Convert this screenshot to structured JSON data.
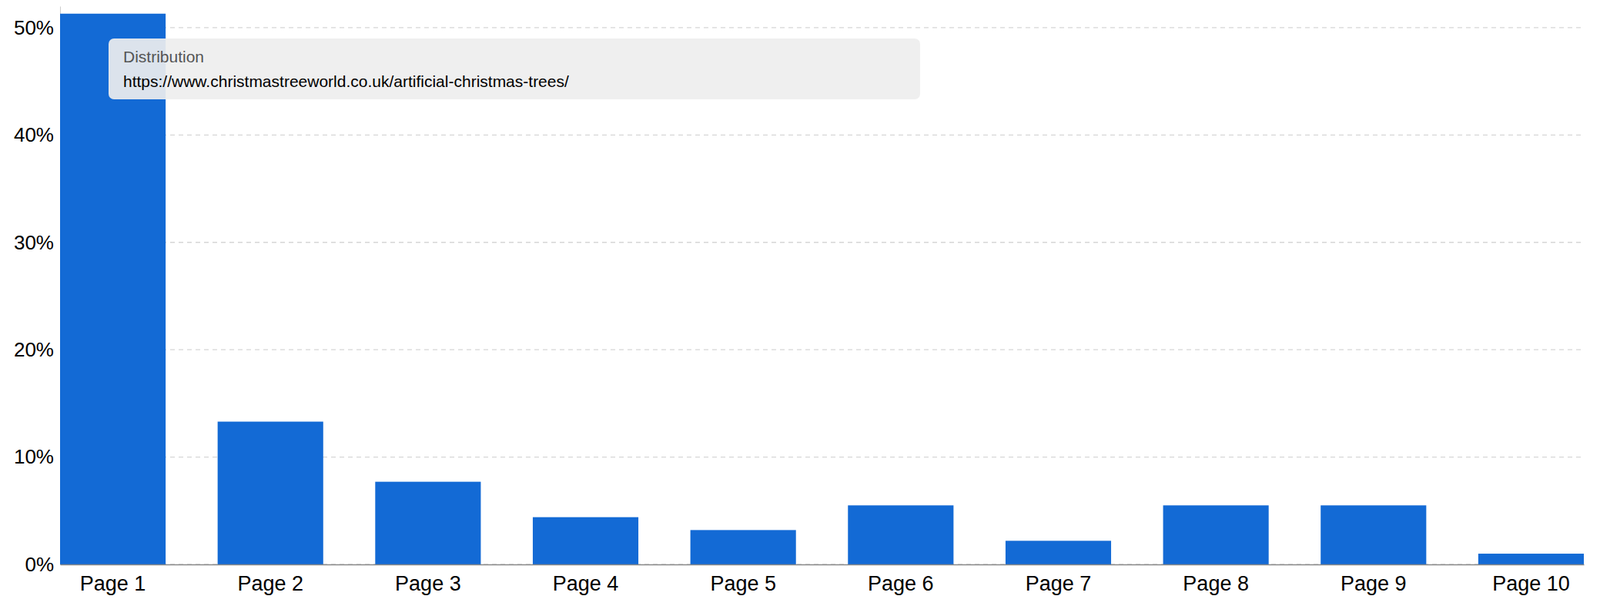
{
  "chart_data": {
    "type": "bar",
    "annotations": [
      "Distribution",
      "https://www.christmastreeworld.co.uk/artificial-christmas-trees/"
    ],
    "categories": [
      "Page 1",
      "Page 2",
      "Page 3",
      "Page 4",
      "Page 5",
      "Page 6",
      "Page 7",
      "Page 8",
      "Page 9",
      "Page 10"
    ],
    "values": [
      51.3,
      13.3,
      7.7,
      4.4,
      3.2,
      5.5,
      2.2,
      5.5,
      5.5,
      1.0
    ],
    "color": "#136ad5",
    "ylim": [
      0,
      52
    ],
    "yticks": [
      {
        "value": 0,
        "label": "0%"
      },
      {
        "value": 10,
        "label": "10%"
      },
      {
        "value": 20,
        "label": "20%"
      },
      {
        "value": 30,
        "label": "30%"
      },
      {
        "value": 40,
        "label": "40%"
      },
      {
        "value": 50,
        "label": "50%"
      }
    ],
    "grid": true
  }
}
